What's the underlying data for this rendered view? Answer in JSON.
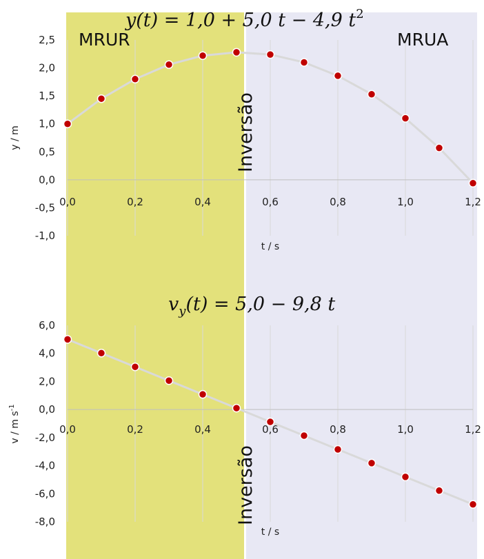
{
  "regions": {
    "left_label": "MRUR",
    "right_label": "MRUA",
    "left_color": "#e3e17b",
    "right_color": "#e8e8f4",
    "boundary_t": 0.52
  },
  "inversion_label": "Inversão",
  "colors": {
    "marker": "#c00000",
    "line": "#d9d9d9",
    "grid": "#d9d9d9"
  },
  "chart_data": [
    {
      "type": "line",
      "title": "y(t) = 1,0 + 5,0 t − 4,9 t²",
      "title_parts": {
        "main": "y(t) = 1,0 + 5,0 t − 4,9 t",
        "sup": "2"
      },
      "xlabel": "t / s",
      "ylabel": "y / m",
      "xlim": [
        0,
        1.2
      ],
      "ylim": [
        -1.0,
        2.5
      ],
      "xticks": [
        "0,0",
        "0,2",
        "0,4",
        "0,6",
        "0,8",
        "1,0",
        "1,2"
      ],
      "xtick_values": [
        0,
        0.2,
        0.4,
        0.6,
        0.8,
        1.0,
        1.2
      ],
      "yticks": [
        "-1,0",
        "-0,5",
        "0,0",
        "0,5",
        "1,0",
        "1,5",
        "2,0",
        "2,5"
      ],
      "ytick_values": [
        -1.0,
        -0.5,
        0.0,
        0.5,
        1.0,
        1.5,
        2.0,
        2.5
      ],
      "grid": true,
      "x": [
        0.0,
        0.1,
        0.2,
        0.3,
        0.4,
        0.5,
        0.6,
        0.7,
        0.8,
        0.9,
        1.0,
        1.1,
        1.2
      ],
      "y": [
        1.0,
        1.45,
        1.8,
        2.06,
        2.22,
        2.28,
        2.24,
        2.1,
        1.86,
        1.53,
        1.1,
        0.57,
        -0.06
      ]
    },
    {
      "type": "line",
      "title": "v_y(t) = 5,0 − 9,8 t",
      "title_parts": {
        "main_pre": "v",
        "sub": "y",
        "main_post": "(t) = 5,0 − 9,8 t"
      },
      "xlabel": "t / s",
      "ylabel": "v / m s-1",
      "ylabel_parts": {
        "main": "v / m s",
        "sup": "-1"
      },
      "xlim": [
        0,
        1.2
      ],
      "ylim": [
        -8.0,
        6.0
      ],
      "xticks": [
        "0,0",
        "0,2",
        "0,4",
        "0,6",
        "0,8",
        "1,0",
        "1,2"
      ],
      "xtick_values": [
        0,
        0.2,
        0.4,
        0.6,
        0.8,
        1.0,
        1.2
      ],
      "yticks": [
        "-8,0",
        "-6,0",
        "-4,0",
        "-2,0",
        "0,0",
        "2,0",
        "4,0",
        "6,0"
      ],
      "ytick_values": [
        -8.0,
        -6.0,
        -4.0,
        -2.0,
        0.0,
        2.0,
        4.0,
        6.0
      ],
      "grid": true,
      "x": [
        0.0,
        0.1,
        0.2,
        0.3,
        0.4,
        0.5,
        0.6,
        0.7,
        0.8,
        0.9,
        1.0,
        1.1,
        1.2
      ],
      "y": [
        5.0,
        4.02,
        3.04,
        2.06,
        1.08,
        0.1,
        -0.88,
        -1.86,
        -2.84,
        -3.82,
        -4.8,
        -5.78,
        -6.76
      ]
    }
  ]
}
